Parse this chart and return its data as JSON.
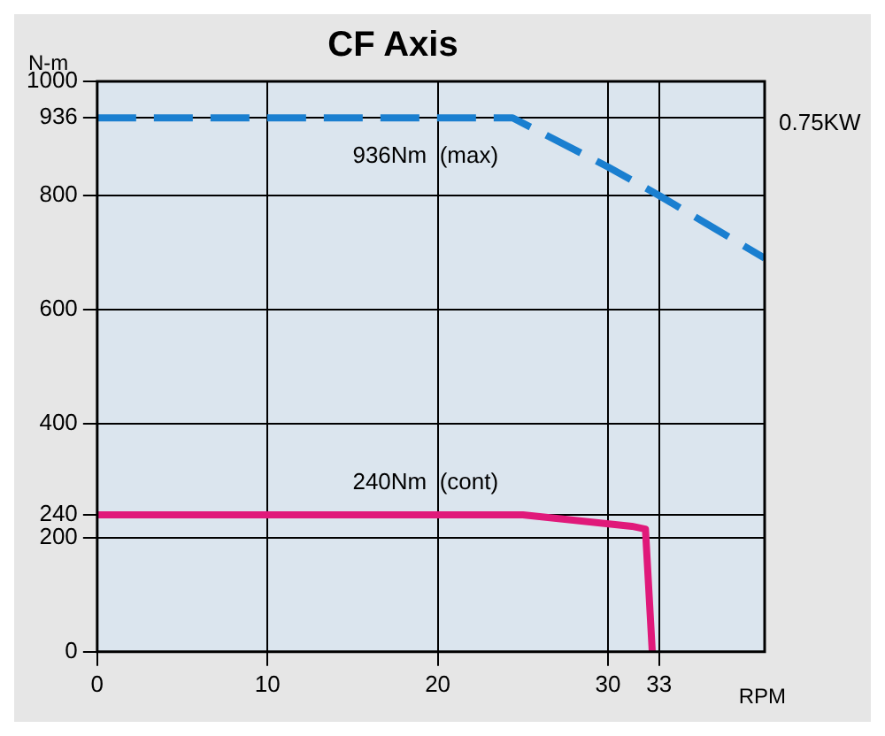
{
  "chart_data": {
    "type": "line",
    "title": "CF Axis",
    "xlabel": "RPM",
    "ylabel": "N-m",
    "xlim": [
      0,
      39.2
    ],
    "xticks": [
      0,
      10,
      20,
      30,
      33
    ],
    "ylim": [
      0,
      1000
    ],
    "yticks": [
      0,
      200,
      240,
      400,
      600,
      800,
      936,
      1000
    ],
    "grid": true,
    "legend": false,
    "marker": "none",
    "series": [
      {
        "color": "#1a7fd0",
        "line_style": "dashed",
        "x": [
          0,
          24.4,
          30,
          33,
          39.2
        ],
        "values": [
          936,
          936,
          850,
          800,
          690
        ]
      },
      {
        "color": "#e0197a",
        "line_style": "solid",
        "x": [
          0,
          25,
          31.4,
          32.2,
          32.6
        ],
        "values": [
          240,
          240,
          220,
          215,
          0
        ]
      }
    ],
    "annotations": [
      {
        "text": "936Nm  (max)",
        "x": 15,
        "y": 936
      },
      {
        "text": "240Nm  (cont)",
        "x": 15,
        "y": 240
      },
      "0.75KW"
    ]
  }
}
